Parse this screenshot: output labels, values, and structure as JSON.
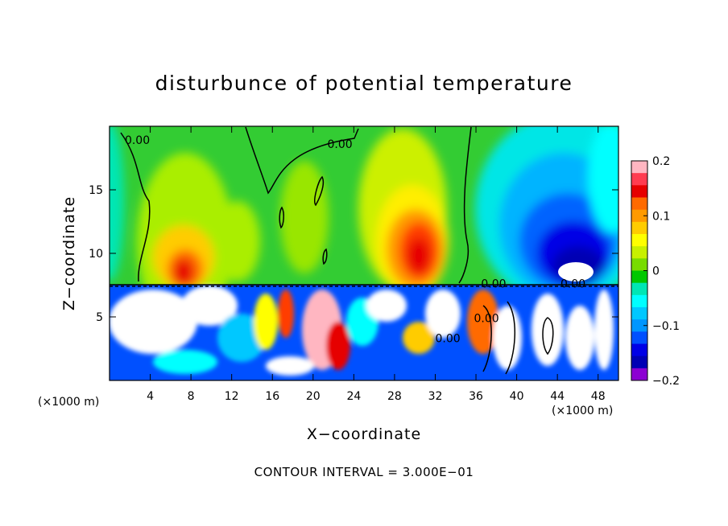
{
  "chart_data": {
    "type": "heatmap",
    "title": "disturbunce of potential temperature",
    "xlabel": "X−coordinate",
    "ylabel": "Z−coordinate",
    "x_unit_left": "(×1000 m)",
    "x_unit_right": "(×1000 m)",
    "footer": "CONTOUR INTERVAL = 3.000E−01",
    "x_range": [
      0,
      50
    ],
    "y_range": [
      0,
      20
    ],
    "x_ticks": [
      "4",
      "8",
      "12",
      "16",
      "20",
      "24",
      "28",
      "32",
      "36",
      "40",
      "44",
      "48"
    ],
    "x_tick_values": [
      4,
      8,
      12,
      16,
      20,
      24,
      28,
      32,
      36,
      40,
      44,
      48
    ],
    "y_ticks": [
      "5",
      "10",
      "15"
    ],
    "y_tick_values": [
      5,
      10,
      15
    ],
    "colorbar": {
      "range": [
        -0.2,
        0.2
      ],
      "ticks": [
        "0.2",
        "0.1",
        "0",
        "−0.1",
        "−0.2"
      ],
      "tick_values": [
        0.2,
        0.1,
        0,
        -0.1,
        -0.2
      ],
      "colors": [
        "#ffb6c1",
        "#ff3c50",
        "#e60000",
        "#ff6a00",
        "#ff9a00",
        "#ffcc00",
        "#ffff00",
        "#c8f000",
        "#78dc00",
        "#00c800",
        "#00e6b4",
        "#00ffff",
        "#00c8ff",
        "#0096ff",
        "#0050ff",
        "#0000e6",
        "#0000b4",
        "#8c00d2"
      ]
    },
    "contour_labels": [
      {
        "text": "0.00",
        "x": 1.5,
        "y": 18.6
      },
      {
        "text": "0.00",
        "x": 21.4,
        "y": 18.3
      },
      {
        "text": "0.00",
        "x": 36.5,
        "y": 7.3
      },
      {
        "text": "0.00",
        "x": 44.3,
        "y": 7.3
      },
      {
        "text": "0.00",
        "x": 35.8,
        "y": 4.6
      },
      {
        "text": "0.00",
        "x": 32.0,
        "y": 3.0
      }
    ],
    "features": [
      {
        "x": 7.5,
        "z": 9.5,
        "value": 0.18
      },
      {
        "x": 30.5,
        "z": 10.5,
        "value": 0.19
      },
      {
        "x": 45,
        "z": 8.5,
        "value": -0.2
      },
      {
        "x": 3,
        "z": 12,
        "value": -0.06
      }
    ]
  }
}
